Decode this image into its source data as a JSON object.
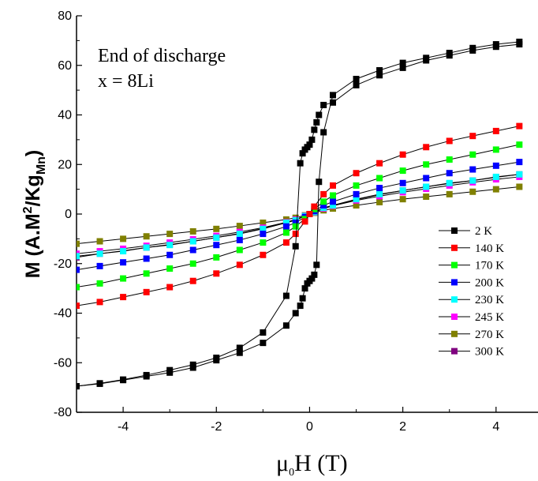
{
  "chart_data": {
    "type": "scatter",
    "annotations": [
      "End of discharge",
      "x = 8Li"
    ],
    "ylabel": {
      "main": "M (A.M",
      "sup": "2",
      "mid": "/Kg",
      "sub": "Mn",
      "end": ")"
    },
    "xlabel": {
      "mu": "μ",
      "sub": "0",
      "rest": "H (T)"
    },
    "xlim": [
      -5,
      4.9
    ],
    "ylim": [
      -80,
      80
    ],
    "xticks": [
      -4,
      -2,
      0,
      2,
      4
    ],
    "xtick_labels": [
      "-4",
      "-2",
      "0",
      "2",
      "4"
    ],
    "yticks": [
      -80,
      -60,
      -40,
      -20,
      0,
      20,
      40,
      60,
      80
    ],
    "ytick_labels": [
      "-80",
      "-60",
      "-40",
      "-20",
      "0",
      "20",
      "40",
      "60",
      "80"
    ],
    "legend_position": "lower-right",
    "series": [
      {
        "name": "2 K",
        "color": "#000000",
        "hysteresis": true,
        "x": [
          -5,
          -4.5,
          -4,
          -3.5,
          -3,
          -2.5,
          -2,
          -1.5,
          -1,
          -0.5,
          -0.3,
          -0.2,
          -0.15,
          -0.1,
          -0.05,
          0,
          0.05,
          0.1,
          0.15,
          0.2,
          0.3,
          0.5,
          1,
          1.5,
          2,
          2.5,
          3,
          3.5,
          4,
          4.5
        ],
        "y_down": [
          -69.5,
          -68.3,
          -66.8,
          -65,
          -63,
          -60.8,
          -58,
          -54,
          -47.8,
          -33,
          -13,
          20.5,
          24.5,
          26,
          27,
          28,
          30,
          34,
          37,
          40,
          44,
          45,
          52,
          56,
          59,
          62,
          64,
          66,
          67.5,
          68.5
        ],
        "y_up": [
          -69.5,
          -68.5,
          -67,
          -65.5,
          -64,
          -62,
          -59,
          -56,
          -52,
          -45,
          -40,
          -37,
          -34,
          -30,
          -28,
          -27,
          -26,
          -24.5,
          -20.5,
          13,
          33,
          48,
          54.5,
          58,
          61,
          63,
          65,
          67,
          68.5,
          69.5
        ]
      },
      {
        "name": "140 K",
        "color": "#ff0000",
        "x": [
          -5,
          -4.5,
          -4,
          -3.5,
          -3,
          -2.5,
          -2,
          -1.5,
          -1,
          -0.5,
          -0.3,
          -0.1,
          0,
          0.1,
          0.3,
          0.5,
          1,
          1.5,
          2,
          2.5,
          3,
          3.5,
          4,
          4.5
        ],
        "y": [
          -37,
          -35.5,
          -33.5,
          -31.5,
          -29.5,
          -27,
          -24,
          -20.5,
          -16.5,
          -11.5,
          -8,
          -3,
          0,
          3,
          8,
          11.5,
          16.5,
          20.5,
          24,
          27,
          29.5,
          31.5,
          33.5,
          35.5
        ]
      },
      {
        "name": "170 K",
        "color": "#00ff00",
        "x": [
          -5,
          -4.5,
          -4,
          -3.5,
          -3,
          -2.5,
          -2,
          -1.5,
          -1,
          -0.5,
          -0.3,
          -0.1,
          0,
          0.1,
          0.3,
          0.5,
          1,
          1.5,
          2,
          2.5,
          3,
          3.5,
          4,
          4.5
        ],
        "y": [
          -29.5,
          -28,
          -26,
          -24,
          -22,
          -20,
          -17.5,
          -14.5,
          -11.5,
          -7.5,
          -5,
          -2,
          0,
          2,
          5,
          7.5,
          11.5,
          14.5,
          17.5,
          20,
          22,
          24,
          26,
          28
        ]
      },
      {
        "name": "200 K",
        "color": "#0000ff",
        "x": [
          -5,
          -4.5,
          -4,
          -3.5,
          -3,
          -2.5,
          -2,
          -1.5,
          -1,
          -0.5,
          -0.3,
          -0.1,
          0,
          0.1,
          0.3,
          0.5,
          1,
          1.5,
          2,
          2.5,
          3,
          3.5,
          4,
          4.5
        ],
        "y": [
          -22.5,
          -21,
          -19.5,
          -18,
          -16.5,
          -14.5,
          -12.5,
          -10.5,
          -8,
          -5,
          -3.5,
          -1.2,
          0,
          1.2,
          3.5,
          5,
          8,
          10.5,
          12.5,
          14.5,
          16.5,
          18,
          19.5,
          21
        ]
      },
      {
        "name": "230 K",
        "color": "#00ffff",
        "x": [
          -5,
          -4.5,
          -4,
          -3.5,
          -3,
          -2.5,
          -2,
          -1.5,
          -1,
          -0.5,
          -0.3,
          -0.1,
          0,
          0.1,
          0.3,
          0.5,
          1,
          1.5,
          2,
          2.5,
          3,
          3.5,
          4,
          4.5
        ],
        "y": [
          -17,
          -16,
          -15,
          -13.5,
          -12.5,
          -11,
          -9.5,
          -8,
          -6,
          -3.5,
          -2.5,
          -0.8,
          0,
          0.8,
          2.5,
          3.5,
          6,
          8,
          9.5,
          11,
          12.5,
          13.5,
          15,
          16
        ]
      },
      {
        "name": "245 K",
        "color": "#ff00ff",
        "x": [
          -5,
          -4.5,
          -4,
          -3.5,
          -3,
          -2.5,
          -2,
          -1.5,
          -1,
          -0.5,
          -0.3,
          -0.1,
          0,
          0.1,
          0.3,
          0.5,
          1,
          1.5,
          2,
          2.5,
          3,
          3.5,
          4,
          4.5
        ],
        "y": [
          -16,
          -15,
          -14,
          -12.8,
          -11.5,
          -10.2,
          -8.8,
          -7.2,
          -5.5,
          -3.3,
          -2.2,
          -0.7,
          0,
          0.7,
          2.2,
          3.3,
          5.5,
          7.2,
          8.8,
          10.2,
          11.5,
          12.8,
          14,
          15
        ]
      },
      {
        "name": "270 K",
        "color": "#808000",
        "x": [
          -5,
          -4.5,
          -4,
          -3.5,
          -3,
          -2.5,
          -2,
          -1.5,
          -1,
          -0.5,
          -0.3,
          -0.1,
          0,
          0.1,
          0.3,
          0.5,
          1,
          1.5,
          2,
          2.5,
          3,
          3.5,
          4,
          4.5
        ],
        "y": [
          -12,
          -11,
          -10,
          -9,
          -8,
          -7,
          -6,
          -4.8,
          -3.5,
          -2.2,
          -1.5,
          -0.5,
          0,
          0.5,
          1.5,
          2.2,
          3.5,
          4.8,
          6,
          7,
          8,
          9,
          10,
          11
        ]
      },
      {
        "name": "300 K",
        "color": "#800080",
        "x": [
          -5,
          -4.5,
          -4,
          -3.5,
          -3,
          -2.5,
          -2,
          -1.5,
          -1,
          -0.5,
          -0.3,
          -0.1,
          0,
          0.1,
          0.3,
          0.5,
          1,
          1.5,
          2,
          2.5,
          3,
          3.5,
          4,
          4.5
        ],
        "y": [
          -17.5,
          -16,
          -14.8,
          -13.5,
          -12.3,
          -11,
          -9.5,
          -7.8,
          -5.8,
          -3.5,
          -2.3,
          -0.8,
          0,
          0.8,
          2.3,
          3.5,
          5.8,
          7.8,
          9.5,
          11,
          12.3,
          13.5,
          14.8,
          16
        ]
      }
    ]
  }
}
